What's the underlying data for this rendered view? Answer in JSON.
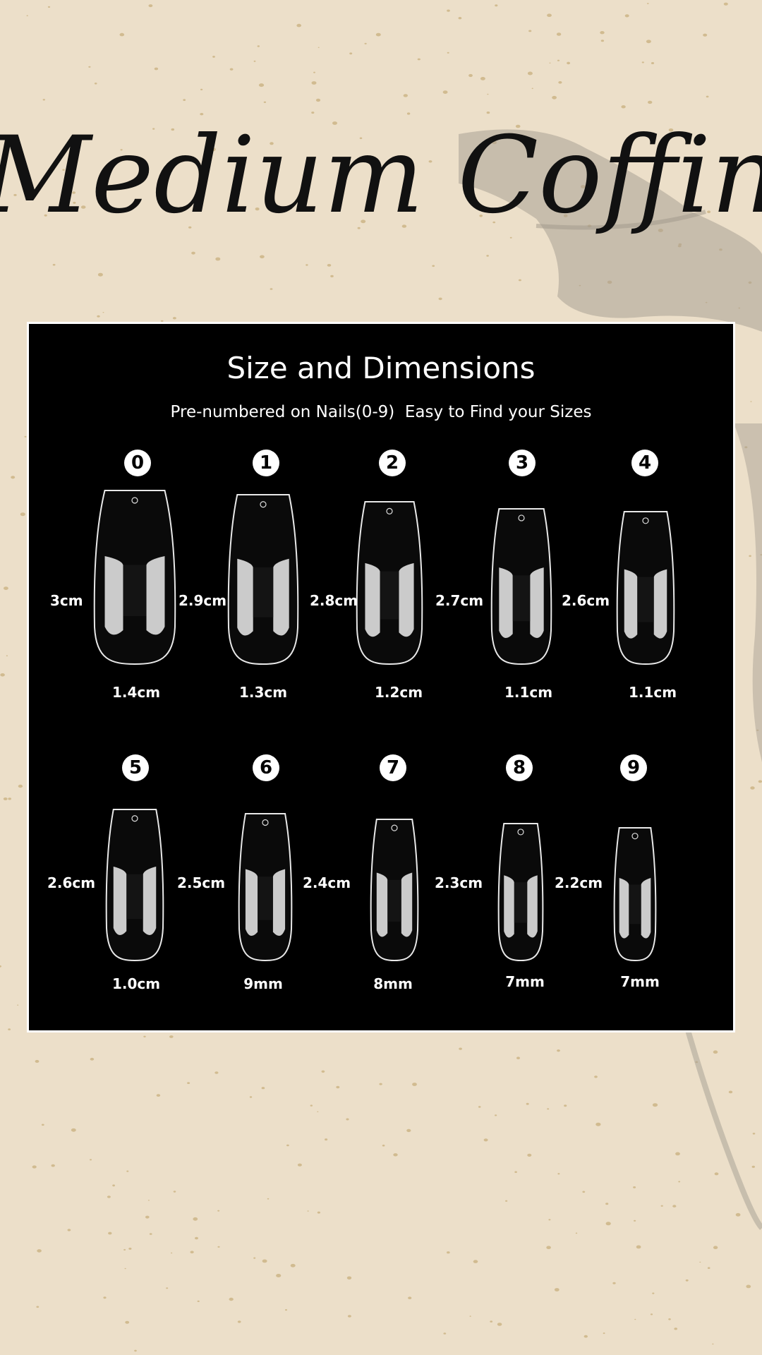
{
  "headline": "Medium Coffin",
  "panel": {
    "title": "Size and Dimensions",
    "subtitle": "Pre-numbered on Nails(0-9)  Easy to Find your Sizes"
  },
  "nails": [
    {
      "number": "0",
      "length": "3cm",
      "width": "1.4cm"
    },
    {
      "number": "1",
      "length": "2.9cm",
      "width": "1.3cm"
    },
    {
      "number": "2",
      "length": "2.8cm",
      "width": "1.2cm"
    },
    {
      "number": "3",
      "length": "2.7cm",
      "width": "1.1cm"
    },
    {
      "number": "4",
      "length": "2.6cm",
      "width": "1.1cm"
    },
    {
      "number": "5",
      "length": "2.6cm",
      "width": "1.0cm"
    },
    {
      "number": "6",
      "length": "2.5cm",
      "width": "9mm"
    },
    {
      "number": "7",
      "length": "2.4cm",
      "width": "8mm"
    },
    {
      "number": "8",
      "length": "2.3cm",
      "width": "7mm"
    },
    {
      "number": "9",
      "length": "2.2cm",
      "width": "7mm"
    }
  ]
}
